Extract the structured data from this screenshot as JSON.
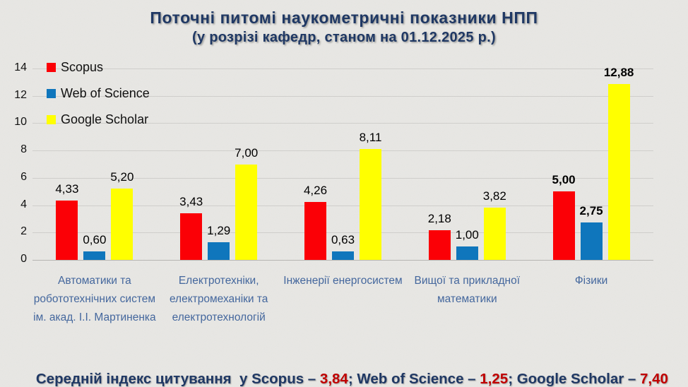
{
  "title": {
    "line1": "Поточні питомі наукометричні показники НПП",
    "line2": "(у розрізі кафедр, станом на 01.12.2025 р.)"
  },
  "chart_data": {
    "type": "bar",
    "categories": [
      "Автоматики та робототехнічних систем ім. акад. І.І. Мартиненка",
      "Електротехніки, електромеханіки та електротехнологій",
      "Інженерії енергосистем",
      "Вищої та прикладної математики",
      "Фізики"
    ],
    "series": [
      {
        "name": "Scopus",
        "color": "#fb0006",
        "values": [
          4.33,
          3.43,
          4.26,
          2.18,
          5.0
        ],
        "labels": [
          "4,33",
          "3,43",
          "4,26",
          "2,18",
          "5,00"
        ]
      },
      {
        "name": "Web of Science",
        "color": "#0f76bc",
        "values": [
          0.6,
          1.29,
          0.63,
          1.0,
          2.75
        ],
        "labels": [
          "0,60",
          "1,29",
          "0,63",
          "1,00",
          "2,75"
        ]
      },
      {
        "name": "Google Scholar",
        "color": "#ffff00",
        "values": [
          5.2,
          7.0,
          8.11,
          3.82,
          12.88
        ],
        "labels": [
          "5,20",
          "7,00",
          "8,11",
          "3,82",
          "12,88"
        ]
      }
    ],
    "ylim": [
      0,
      14
    ],
    "yticks": [
      0,
      2,
      4,
      6,
      8,
      10,
      12,
      14
    ],
    "grid": true,
    "legend_position": "top-left",
    "value_labels_shown": true,
    "bold_value_labels_group_index": 4
  },
  "footer": {
    "segments": [
      {
        "text": "Середній індекс цитування  у Scopus – ",
        "type": "label"
      },
      {
        "text": "3,84",
        "type": "value"
      },
      {
        "text": "; Web of Science – ",
        "type": "label"
      },
      {
        "text": "1,25",
        "type": "value"
      },
      {
        "text": "; Google Scholar – ",
        "type": "label"
      },
      {
        "text": "7,40",
        "type": "value"
      }
    ]
  },
  "colors": {
    "background": "#e9e8e5",
    "title_text": "#1f3864",
    "category_label": "#44679d",
    "value_label": "#000000",
    "gridline": "#cfcecb",
    "axis_line": "#b6b5b2",
    "footer_label": "#1f3864",
    "footer_value": "#c00000",
    "scopus": "#fb0006",
    "web_of_science": "#0f76bc",
    "google_scholar": "#ffff00"
  }
}
